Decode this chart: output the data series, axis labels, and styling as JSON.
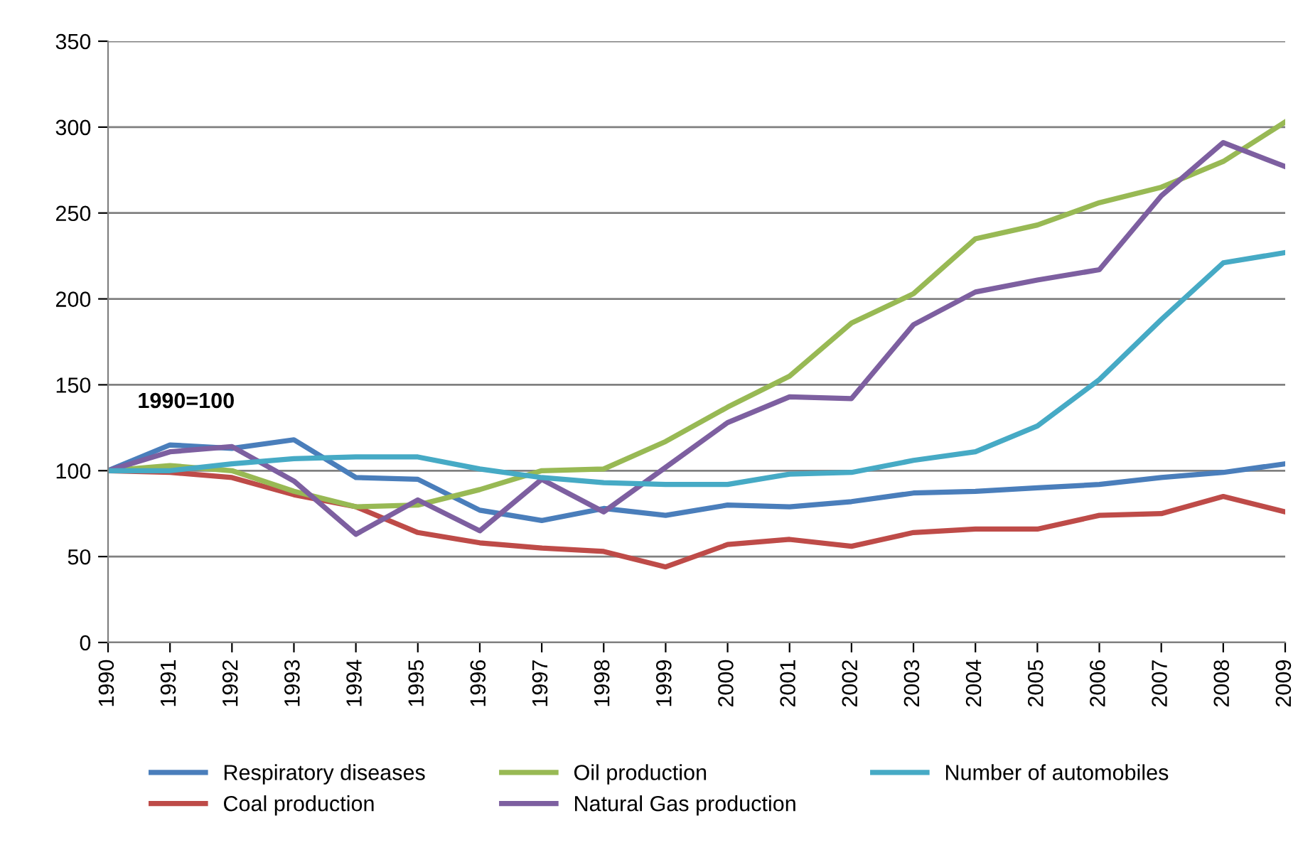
{
  "chart_data": {
    "type": "line",
    "categories": [
      "1990",
      "1991",
      "1992",
      "1993",
      "1994",
      "1995",
      "1996",
      "1997",
      "1998",
      "1999",
      "2000",
      "2001",
      "2002",
      "2003",
      "2004",
      "2005",
      "2006",
      "2007",
      "2008",
      "2009"
    ],
    "series": [
      {
        "name": "Respiratory diseases",
        "color": "#4a7ebb",
        "values": [
          100,
          115,
          113,
          118,
          96,
          95,
          77,
          71,
          78,
          74,
          80,
          79,
          82,
          87,
          88,
          90,
          92,
          96,
          99,
          104
        ]
      },
      {
        "name": "Coal production",
        "color": "#be4b48",
        "values": [
          100,
          99,
          96,
          86,
          79,
          64,
          58,
          55,
          53,
          44,
          57,
          60,
          56,
          64,
          66,
          66,
          74,
          75,
          85,
          76
        ]
      },
      {
        "name": "Oil production",
        "color": "#98b954",
        "values": [
          100,
          103,
          100,
          88,
          79,
          80,
          89,
          100,
          101,
          117,
          137,
          155,
          186,
          203,
          235,
          243,
          256,
          265,
          280,
          303
        ]
      },
      {
        "name": "Natural Gas production",
        "color": "#7d5fa0",
        "values": [
          100,
          111,
          114,
          94,
          63,
          83,
          65,
          95,
          76,
          102,
          128,
          143,
          142,
          185,
          204,
          211,
          217,
          260,
          291,
          277
        ]
      },
      {
        "name": "Number of automobiles",
        "color": "#46aac5",
        "values": [
          100,
          100,
          104,
          107,
          108,
          108,
          101,
          96,
          93,
          92,
          92,
          98,
          99,
          106,
          111,
          126,
          153,
          188,
          221,
          227
        ]
      }
    ],
    "ylim": [
      0,
      350
    ],
    "yticks": [
      0,
      50,
      100,
      150,
      200,
      250,
      300,
      350
    ],
    "grid": "y",
    "legend": "bottom",
    "marker": "none",
    "line_style": "solid",
    "annotations": [
      "1990=100"
    ]
  }
}
